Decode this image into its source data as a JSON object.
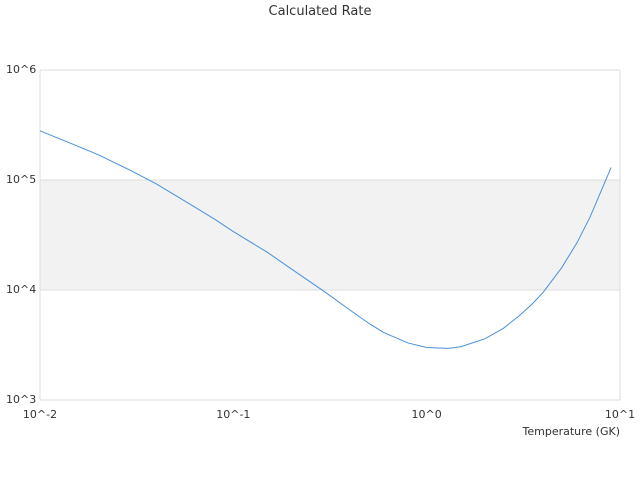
{
  "chart_data": {
    "type": "line",
    "title": "Calculated Rate",
    "xlabel": "Temperature (GK)",
    "ylabel": "",
    "x_scale": "log",
    "y_scale": "log",
    "xlim": [
      0.01,
      10
    ],
    "ylim": [
      1000,
      1000000
    ],
    "x_tick_labels": [
      "10^-2",
      "10^-1",
      "10^0",
      "10^1"
    ],
    "y_tick_labels": [
      "10^3",
      "10^4",
      "10^5",
      "10^6"
    ],
    "grid": true,
    "legend": "none",
    "series": [
      {
        "color": "#4a90d9",
        "x": [
          0.01,
          0.014,
          0.02,
          0.03,
          0.04,
          0.06,
          0.08,
          0.1,
          0.15,
          0.2,
          0.3,
          0.4,
          0.5,
          0.6,
          0.8,
          1.0,
          1.3,
          1.5,
          2.0,
          2.5,
          3.0,
          3.5,
          4.0,
          5.0,
          6.0,
          7.0,
          8.0,
          9.0
        ],
        "y": [
          280000,
          220000,
          170000,
          120000,
          92000,
          60000,
          44000,
          34000,
          22000,
          15500,
          9500,
          6600,
          5000,
          4100,
          3300,
          3000,
          2950,
          3050,
          3600,
          4500,
          5800,
          7400,
          9500,
          16000,
          27000,
          46000,
          80000,
          130000
        ]
      }
    ]
  }
}
